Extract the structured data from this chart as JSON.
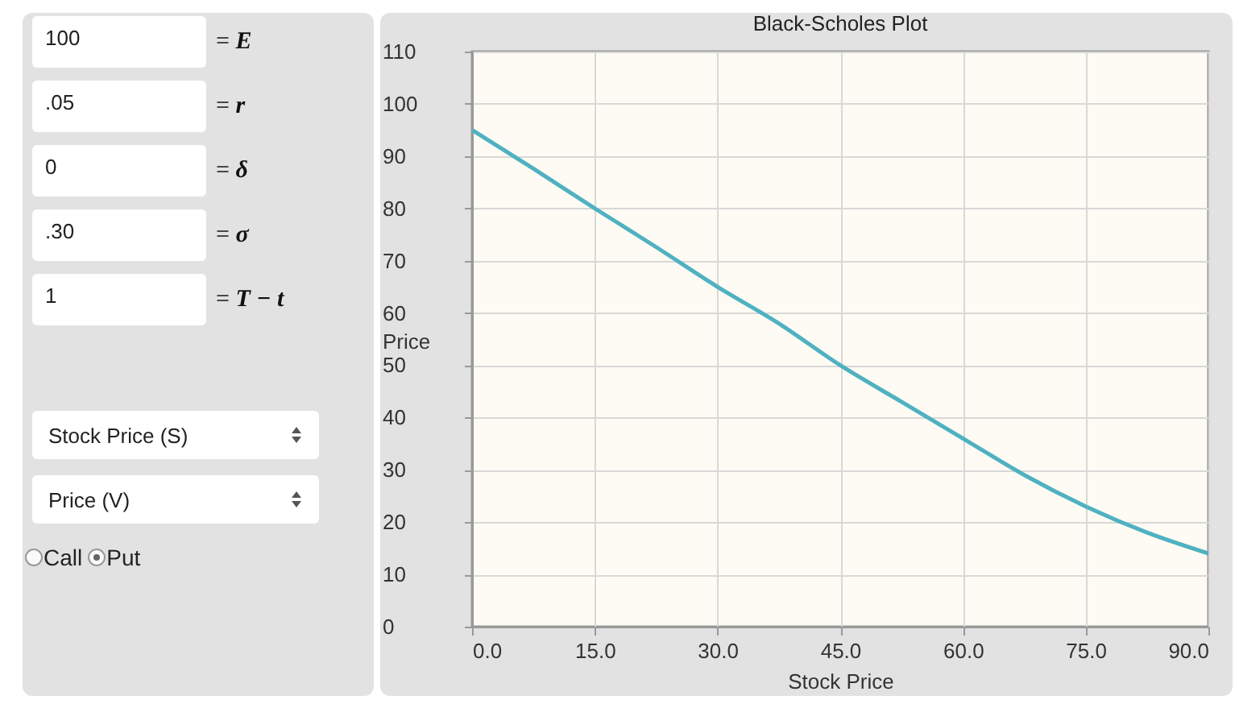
{
  "chart_data": [
    {
      "type": "other",
      "annotations": [
        "100",
        "= E",
        ".05",
        "= r",
        "0",
        "= δ",
        ".30",
        "= σ",
        "1",
        "= T − t",
        "Stock Price (S)",
        "Price (V)",
        "Call",
        "Put"
      ]
    },
    {
      "type": "line",
      "title": "Black-Scholes Plot",
      "xlabel": "Stock Price",
      "ylabel": "Price",
      "x": [
        0,
        7.5,
        15,
        22.5,
        30,
        37.5,
        45,
        52.5,
        60,
        67.5,
        75,
        82.5,
        90
      ],
      "series": [
        {
          "color": "#4fb1c1",
          "values": [
            95,
            87.6,
            80,
            72.6,
            65,
            58,
            50,
            43,
            36,
            29,
            23,
            18,
            14
          ]
        }
      ],
      "xlim": [
        0,
        90
      ],
      "xticks": [
        {
          "value": 0,
          "label": "0.0"
        },
        {
          "value": 15,
          "label": "15.0"
        },
        {
          "value": 30,
          "label": "30.0"
        },
        {
          "value": 45,
          "label": "45.0"
        },
        {
          "value": 60,
          "label": "60.0"
        },
        {
          "value": 75,
          "label": "75.0"
        },
        {
          "value": 90,
          "label": "90.0"
        }
      ],
      "ylim": [
        0,
        110
      ],
      "yticks": [
        0,
        10,
        20,
        30,
        40,
        50,
        60,
        70,
        80,
        90,
        100,
        110
      ],
      "grid": true,
      "marker": "none",
      "line_style": "solid"
    }
  ]
}
